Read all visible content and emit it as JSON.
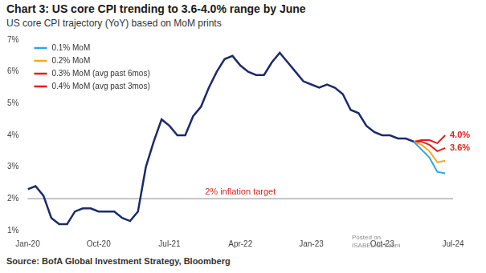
{
  "chart_data": {
    "type": "line",
    "title": "Chart 3: US core CPI trending to 3.6-4.0% range by June",
    "subtitle": "US core CPI trajectory (YoY) based on MoM prints",
    "source": "Source: BofA Global Investment Strategy, Bloomberg",
    "watermark": [
      "Posted on",
      "ISABELNET.com"
    ],
    "categories": [
      "Jan-20",
      null,
      null,
      null,
      null,
      null,
      null,
      null,
      null,
      "Oct-20",
      null,
      null,
      null,
      null,
      null,
      null,
      null,
      null,
      "Jul-21",
      null,
      null,
      null,
      null,
      null,
      null,
      null,
      null,
      "Apr-22",
      null,
      null,
      null,
      null,
      null,
      null,
      null,
      null,
      "Jan-23",
      null,
      null,
      null,
      null,
      null,
      null,
      null,
      null,
      "Oct-23",
      null,
      null,
      null,
      null,
      null,
      null,
      null,
      null,
      "Jul-24"
    ],
    "series": [
      {
        "color": "#1b2a6b",
        "values": [
          2.3,
          2.4,
          2.1,
          1.4,
          1.2,
          1.2,
          1.6,
          1.7,
          1.7,
          1.6,
          1.6,
          1.6,
          1.4,
          1.3,
          1.6,
          3.0,
          3.8,
          4.5,
          4.3,
          4.0,
          4.0,
          4.6,
          4.9,
          5.5,
          6.0,
          6.4,
          6.5,
          6.2,
          6.0,
          5.9,
          5.9,
          6.3,
          6.6,
          6.3,
          6.0,
          5.7,
          5.6,
          5.5,
          5.6,
          5.5,
          5.3,
          4.8,
          4.7,
          4.3,
          4.1,
          4.0,
          4.0,
          3.9,
          3.9,
          3.8,
          null,
          null,
          null,
          null,
          null
        ]
      },
      {
        "name": "0.1% MoM",
        "color": "#29a8e0",
        "values": [
          null,
          null,
          null,
          null,
          null,
          null,
          null,
          null,
          null,
          null,
          null,
          null,
          null,
          null,
          null,
          null,
          null,
          null,
          null,
          null,
          null,
          null,
          null,
          null,
          null,
          null,
          null,
          null,
          null,
          null,
          null,
          null,
          null,
          null,
          null,
          null,
          null,
          null,
          null,
          null,
          null,
          null,
          null,
          null,
          null,
          null,
          null,
          null,
          null,
          3.8,
          3.55,
          3.3,
          2.85,
          2.8,
          null
        ]
      },
      {
        "name": "0.2% MoM",
        "color": "#f5a623",
        "values": [
          null,
          null,
          null,
          null,
          null,
          null,
          null,
          null,
          null,
          null,
          null,
          null,
          null,
          null,
          null,
          null,
          null,
          null,
          null,
          null,
          null,
          null,
          null,
          null,
          null,
          null,
          null,
          null,
          null,
          null,
          null,
          null,
          null,
          null,
          null,
          null,
          null,
          null,
          null,
          null,
          null,
          null,
          null,
          null,
          null,
          null,
          null,
          null,
          null,
          3.8,
          3.7,
          3.5,
          3.15,
          3.2,
          null
        ]
      },
      {
        "name": "0.3% MoM (avg past 6mos)",
        "color": "#e0201b",
        "values": [
          null,
          null,
          null,
          null,
          null,
          null,
          null,
          null,
          null,
          null,
          null,
          null,
          null,
          null,
          null,
          null,
          null,
          null,
          null,
          null,
          null,
          null,
          null,
          null,
          null,
          null,
          null,
          null,
          null,
          null,
          null,
          null,
          null,
          null,
          null,
          null,
          null,
          null,
          null,
          null,
          null,
          null,
          null,
          null,
          null,
          null,
          null,
          null,
          null,
          3.8,
          3.8,
          3.7,
          3.5,
          3.6,
          null
        ]
      },
      {
        "name": "0.4% MoM (avg past 3mos)",
        "color": "#e0201b",
        "values": [
          null,
          null,
          null,
          null,
          null,
          null,
          null,
          null,
          null,
          null,
          null,
          null,
          null,
          null,
          null,
          null,
          null,
          null,
          null,
          null,
          null,
          null,
          null,
          null,
          null,
          null,
          null,
          null,
          null,
          null,
          null,
          null,
          null,
          null,
          null,
          null,
          null,
          null,
          null,
          null,
          null,
          null,
          null,
          null,
          null,
          null,
          null,
          null,
          null,
          3.8,
          3.85,
          3.85,
          3.75,
          4.0,
          null
        ]
      }
    ],
    "ylim": [
      1,
      7
    ],
    "yticks": [
      {
        "value": 1,
        "label": "1%"
      },
      {
        "value": 2,
        "label": "2%"
      },
      {
        "value": 3,
        "label": "3%"
      },
      {
        "value": 4,
        "label": "4%"
      },
      {
        "value": 5,
        "label": "5%"
      },
      {
        "value": 6,
        "label": "6%"
      },
      {
        "value": 7,
        "label": "7%"
      }
    ],
    "grid": false,
    "legend": "upper left",
    "reference_line": {
      "y": 2,
      "label": "2% inflation target",
      "color": "#b0b0b0",
      "label_color": "#d6281e"
    },
    "annotations": [
      {
        "text": "4.0%",
        "x": "Jul-24",
        "y": 4.0,
        "color": "#e0201b"
      },
      {
        "text": "3.6%",
        "x": "Jul-24",
        "y": 3.6,
        "color": "#e0201b"
      }
    ]
  }
}
